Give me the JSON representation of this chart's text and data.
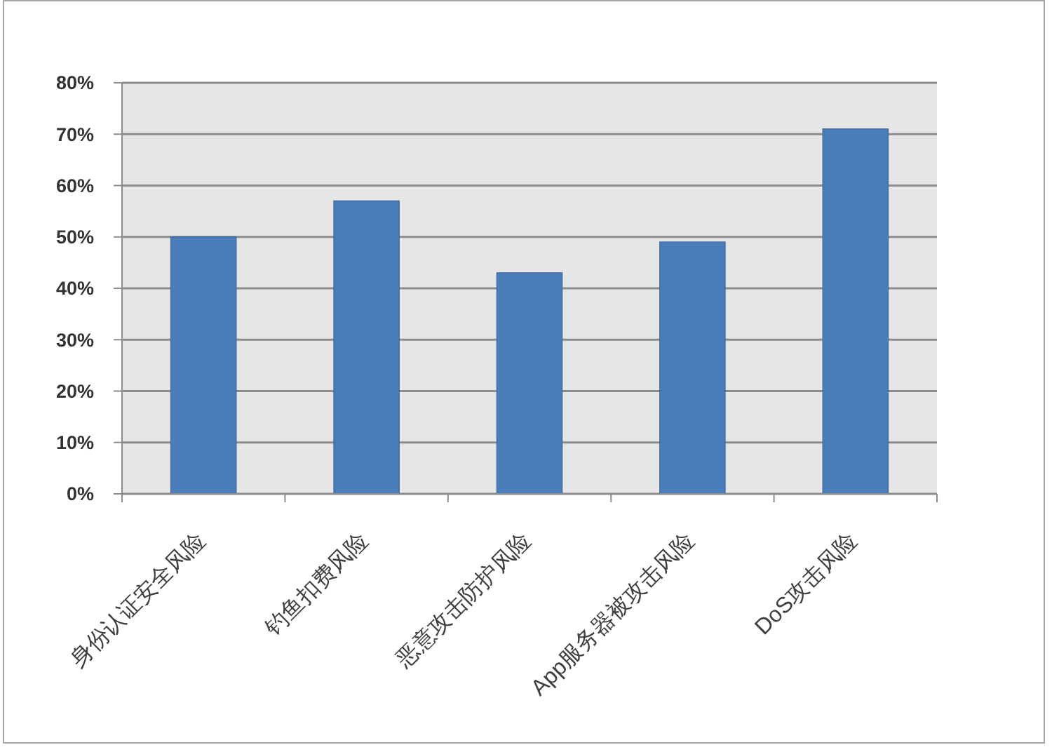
{
  "chart_data": {
    "type": "bar",
    "categories": [
      "身份认证安全风险",
      "钓鱼扣费风险",
      "恶意攻击防护风险",
      "App服务器被攻击风险",
      "DoS攻击风险"
    ],
    "values": [
      50,
      57,
      43,
      49,
      71
    ],
    "color": "#4a7ebb",
    "ylim": [
      0,
      80
    ],
    "yticks": [
      {
        "value": 0,
        "label": "0%"
      },
      {
        "value": 10,
        "label": "10%"
      },
      {
        "value": 20,
        "label": "20%"
      },
      {
        "value": 30,
        "label": "30%"
      },
      {
        "value": 40,
        "label": "40%"
      },
      {
        "value": 50,
        "label": "50%"
      },
      {
        "value": 60,
        "label": "60%"
      },
      {
        "value": 70,
        "label": "70%"
      },
      {
        "value": 80,
        "label": "80%"
      }
    ],
    "grid": "y"
  }
}
